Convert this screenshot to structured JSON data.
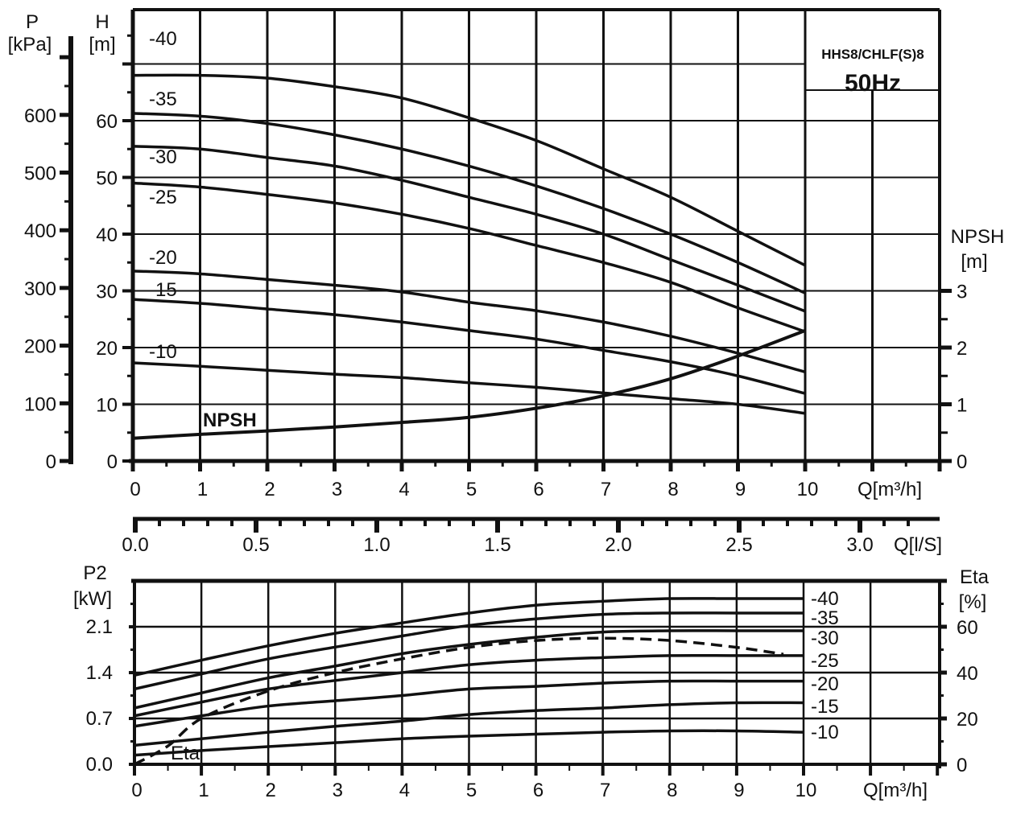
{
  "chart_data": [
    {
      "type": "line",
      "title": "HHS8/CHLF(S)8",
      "subtitle": "50Hz",
      "xlabel": "Q[m³/h]",
      "ylabel": "H [m]",
      "ylabel_left_outer": "P [kPa]",
      "ylabel_right": "NPSH [m]",
      "xlim": [
        0,
        12
      ],
      "ylim": [
        0,
        80
      ],
      "x_ticks": [
        0,
        1,
        2,
        3,
        4,
        5,
        6,
        7,
        8,
        9,
        10
      ],
      "h_ticks": [
        0,
        10,
        20,
        30,
        40,
        50,
        60
      ],
      "p_ticks": [
        0,
        100,
        200,
        300,
        400,
        500,
        600
      ],
      "npsh_ticks": [
        0,
        1,
        2,
        3
      ],
      "secondary_x": {
        "label": "Q[l/S]",
        "ticks": [
          "0.0",
          "0.5",
          "1.0",
          "1.5",
          "2.0",
          "2.5",
          "3.0"
        ]
      },
      "grid": true,
      "x": [
        0,
        1,
        2,
        3,
        4,
        5,
        6,
        7,
        8,
        9,
        10
      ],
      "series": [
        {
          "name": "-40",
          "values": [
            68,
            68,
            67.5,
            66,
            64,
            60.5,
            56.5,
            51.5,
            46.5,
            40.5,
            34.5
          ]
        },
        {
          "name": "-35",
          "values": [
            61.3,
            60.8,
            59.5,
            57.5,
            55,
            52,
            48.5,
            44.5,
            40,
            35,
            29.6
          ]
        },
        {
          "name": "-30",
          "values": [
            55.5,
            55,
            53.5,
            52,
            49.5,
            46.5,
            43.5,
            40,
            35.5,
            31,
            26.4
          ]
        },
        {
          "name": "-25",
          "values": [
            49,
            48.3,
            47,
            45.5,
            43.5,
            41,
            38,
            35,
            31.5,
            27,
            22.8
          ]
        },
        {
          "name": "-20",
          "values": [
            33.5,
            33,
            32,
            31,
            29.8,
            28,
            26.5,
            24.5,
            22,
            19,
            15.7
          ]
        },
        {
          "name": "-15",
          "values": [
            28.5,
            27.8,
            26.8,
            25.8,
            24.5,
            23,
            21.5,
            19.5,
            17.5,
            15,
            11.9
          ]
        },
        {
          "name": "-10",
          "values": [
            17.3,
            16.7,
            16,
            15.3,
            14.7,
            13.8,
            13,
            12,
            11,
            10,
            8.4
          ]
        }
      ],
      "npsh": {
        "name": "NPSH",
        "values": [
          0.4,
          0.47,
          0.53,
          0.6,
          0.68,
          0.77,
          0.93,
          1.15,
          1.45,
          1.85,
          2.3
        ]
      }
    },
    {
      "type": "line",
      "xlabel": "Q[m³/h]",
      "ylabel": "P2 [kW]",
      "ylabel_right": "Eta [%]",
      "xlim": [
        0,
        12
      ],
      "ylim": [
        0,
        2.8
      ],
      "x_ticks": [
        0,
        1,
        2,
        3,
        4,
        5,
        6,
        7,
        8,
        9,
        10
      ],
      "p2_ticks": [
        "0.0",
        "0.7",
        "1.4",
        "2.1"
      ],
      "eta_ticks": [
        0,
        20,
        40,
        60
      ],
      "grid": true,
      "x": [
        0,
        1,
        2,
        3,
        4,
        5,
        6,
        7,
        8,
        9,
        10
      ],
      "series": [
        {
          "name": "-40",
          "values": [
            1.36,
            1.59,
            1.81,
            2.0,
            2.16,
            2.31,
            2.43,
            2.49,
            2.53,
            2.53,
            2.53
          ]
        },
        {
          "name": "-35",
          "values": [
            1.15,
            1.38,
            1.61,
            1.79,
            1.96,
            2.12,
            2.22,
            2.29,
            2.31,
            2.31,
            2.31
          ]
        },
        {
          "name": "-30",
          "values": [
            0.86,
            1.09,
            1.32,
            1.5,
            1.69,
            1.83,
            1.94,
            2.02,
            2.04,
            2.04,
            2.04
          ]
        },
        {
          "name": "-25",
          "values": [
            0.74,
            0.95,
            1.15,
            1.28,
            1.4,
            1.52,
            1.59,
            1.63,
            1.66,
            1.66,
            1.66
          ]
        },
        {
          "name": "-20",
          "values": [
            0.58,
            0.74,
            0.89,
            0.97,
            1.05,
            1.15,
            1.19,
            1.24,
            1.27,
            1.27,
            1.27
          ]
        },
        {
          "name": "-15",
          "values": [
            0.29,
            0.39,
            0.49,
            0.58,
            0.66,
            0.76,
            0.82,
            0.86,
            0.91,
            0.94,
            0.94
          ]
        },
        {
          "name": "-10",
          "values": [
            0.14,
            0.21,
            0.27,
            0.33,
            0.39,
            0.43,
            0.46,
            0.49,
            0.51,
            0.51,
            0.49
          ]
        }
      ],
      "eta": {
        "name": "Eta",
        "x": [
          0,
          0.5,
          1,
          2,
          3,
          4,
          5,
          6,
          7,
          8,
          9,
          9.7
        ],
        "values": [
          0,
          8,
          20,
          32,
          40,
          46,
          51,
          54,
          55,
          54,
          51,
          48
        ]
      }
    }
  ]
}
